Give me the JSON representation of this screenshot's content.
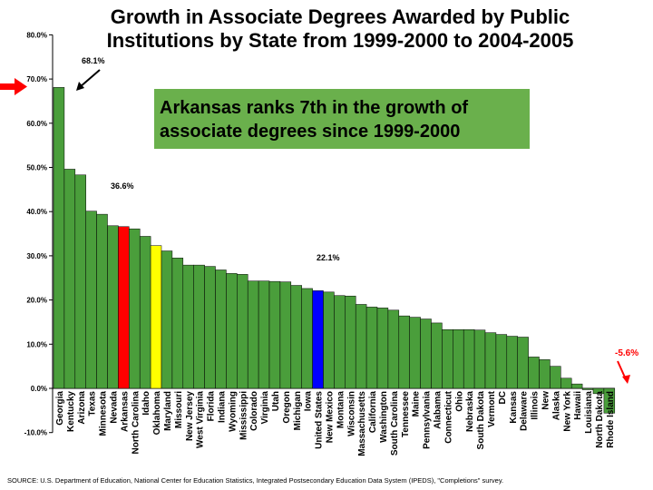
{
  "title_line1": "Growth in Associate Degrees Awarded by Public",
  "title_line2": "Institutions by State from 1999-2000 to 2004-2005",
  "callout_line1": "Arkansas ranks 7th in the growth of",
  "callout_line2": "associate degrees since 1999-2000",
  "source": "SOURCE: U.S. Department of Education, National Center for Education Statistics, Integrated Postsecondary Education Data System (IPEDS), \"Completions\" survey.",
  "colors": {
    "default": "#4a9e3b",
    "arkansas": "#ff0000",
    "oklahoma": "#ffff00",
    "united_states": "#0000ff",
    "callout_bg": "#6ab04c",
    "arrow_red": "#ff0000"
  },
  "annotations": {
    "georgia": "68.1%",
    "arkansas": "36.6%",
    "united_states": "22.1%",
    "rhode_island": "-5.6%"
  },
  "chart_data": {
    "type": "bar",
    "ylim": [
      -10,
      80
    ],
    "yticks": [
      -10,
      0,
      10,
      20,
      30,
      40,
      50,
      60,
      70,
      80
    ],
    "ytick_labels": [
      "-10.0%",
      "0.0%",
      "10.0%",
      "20.0%",
      "30.0%",
      "40.0%",
      "50.0%",
      "60.0%",
      "70.0%",
      "80.0%"
    ],
    "grid": false,
    "categories": [
      "Georgia",
      "Kentucky",
      "Arizona",
      "Texas",
      "Minnesota",
      "Nevada",
      "Arkansas",
      "North Carolina",
      "Idaho",
      "Oklahoma",
      "Maryland",
      "Missouri",
      "New Jersey",
      "West Virginia",
      "Florida",
      "Indiana",
      "Wyoming",
      "Mississippi",
      "Colorado",
      "Virginia",
      "Utah",
      "Oregon",
      "Michigan",
      "Iowa",
      "United States",
      "New Mexico",
      "Montana",
      "Wisconsin",
      "Massachusetts",
      "California",
      "Washington",
      "South Carolina",
      "Tennessee",
      "Maine",
      "Pennsylvania",
      "Alabama",
      "Connecticut",
      "Ohio",
      "Nebraska",
      "South Dakota",
      "Vermont",
      "DC",
      "Kansas",
      "Delaware",
      "Illinois",
      "New",
      "Alaska",
      "New York",
      "Hawaii",
      "Louisiana",
      "North Dakota",
      "Rhode Island"
    ],
    "values": [
      68.1,
      49.6,
      48.3,
      40.1,
      39.4,
      36.8,
      36.6,
      36.1,
      34.4,
      32.3,
      31.1,
      29.5,
      27.9,
      27.9,
      27.6,
      26.8,
      26.0,
      25.8,
      24.3,
      24.3,
      24.2,
      24.1,
      23.3,
      22.6,
      22.1,
      21.8,
      21.0,
      20.9,
      19.0,
      18.4,
      18.2,
      17.7,
      16.4,
      16.1,
      15.7,
      14.8,
      13.3,
      13.3,
      13.3,
      13.2,
      12.6,
      12.2,
      11.8,
      11.6,
      7.1,
      6.5,
      5.0,
      2.3,
      1.0,
      -0.3,
      -1.2,
      -5.6
    ],
    "highlight": {
      "Arkansas": "arkansas",
      "Oklahoma": "oklahoma",
      "United States": "united_states"
    }
  }
}
